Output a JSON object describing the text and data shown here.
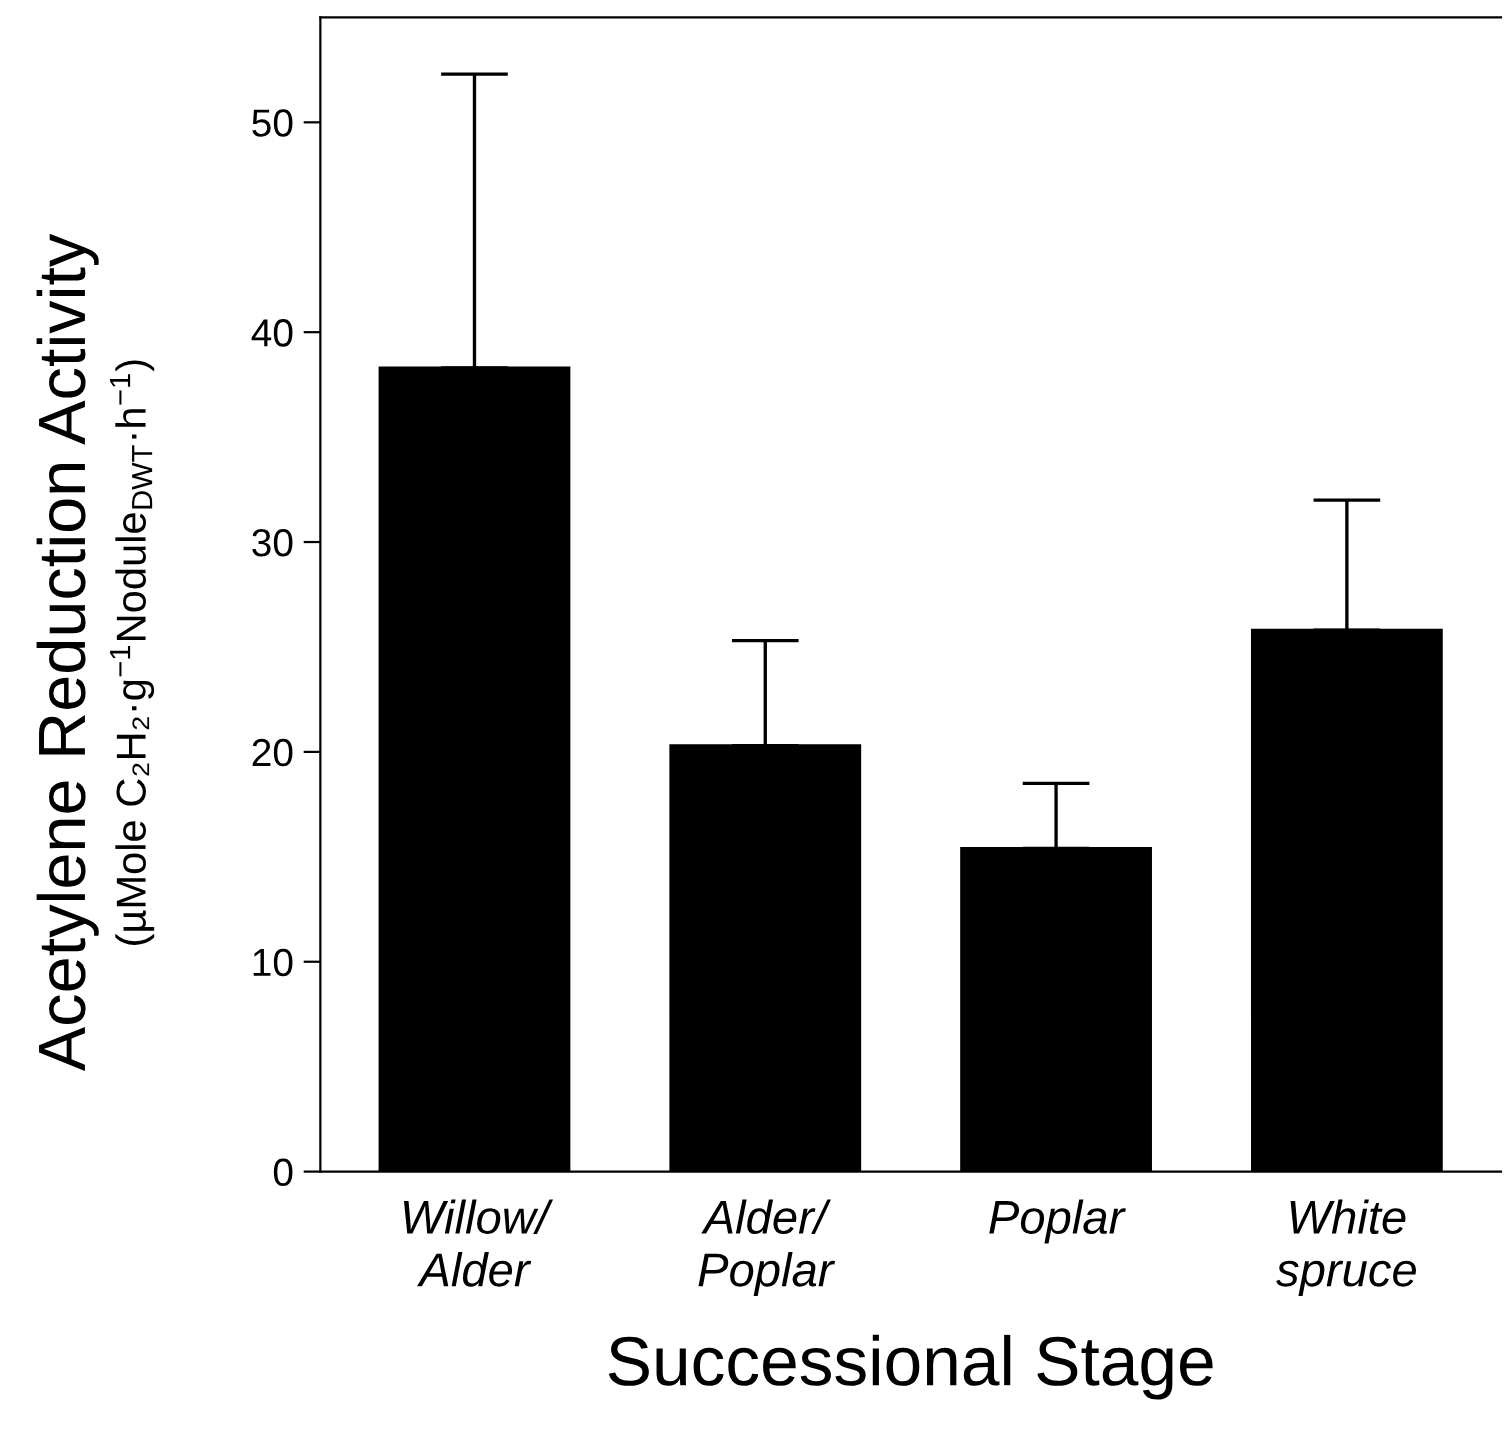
{
  "chart_data": {
    "type": "bar",
    "categories": [
      "Willow/\nAlder",
      "Alder/\nPoplar",
      "Poplar",
      "White\nspruce"
    ],
    "values": [
      38.3,
      20.3,
      15.4,
      25.8
    ],
    "errors": [
      [
        38.3,
        52.3
      ],
      [
        20.3,
        25.3
      ],
      [
        15.4,
        18.5
      ],
      [
        25.8,
        32.0
      ]
    ],
    "color": "#000000",
    "xlabel": "Successional Stage",
    "ylabel": "Acetylene Reduction Activity\n(µMole C₂H₂·g$^{−1}$Nodule$_{DWT}$·h$^{−1}$)",
    "ylim": [
      0,
      55
    ],
    "yticks": [
      0,
      10,
      20,
      30,
      40,
      50
    ],
    "grid": false,
    "legend": false
  }
}
